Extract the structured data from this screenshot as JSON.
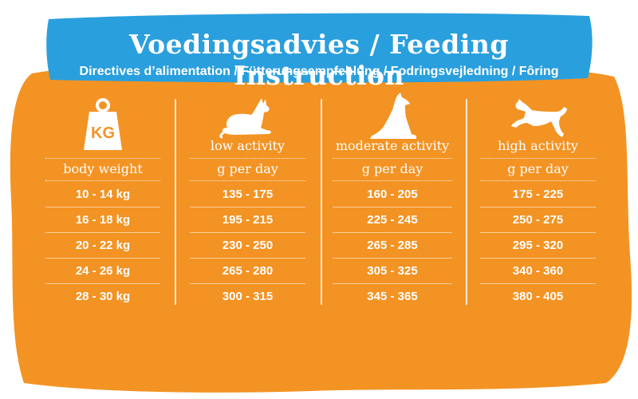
{
  "banner": {
    "title": "Voedingsadvies / Feeding Instruction",
    "subtitle": "Directives d’alimentation / Fütterungsempfehlung / Fodringsvejledning / Fôring"
  },
  "weight_column": {
    "icon": "weight-kg-icon",
    "icon_text": "KG",
    "header": "body weight",
    "values": [
      "10 - 14 kg",
      "16 - 18 kg",
      "20 - 22 kg",
      "24 - 26 kg",
      "28 - 30 kg"
    ]
  },
  "activity_columns": [
    {
      "icon": "lying-dog-icon",
      "activity": "low activity",
      "header": "g per day",
      "values": [
        "135 - 175",
        "195 - 215",
        "230 - 250",
        "265 - 280",
        "300 - 315"
      ]
    },
    {
      "icon": "sitting-dog-icon",
      "activity": "moderate activity",
      "header": "g per day",
      "values": [
        "160 - 205",
        "225 - 245",
        "265 - 285",
        "305 - 325",
        "345 - 365"
      ]
    },
    {
      "icon": "jumping-dog-icon",
      "activity": "high activity",
      "header": "g per day",
      "values": [
        "175 - 225",
        "250 - 275",
        "295 - 320",
        "340 - 360",
        "380 - 405"
      ]
    }
  ],
  "colors": {
    "background": "#F39323",
    "banner": "#2A9FDD",
    "text": "#FFFFFF"
  }
}
